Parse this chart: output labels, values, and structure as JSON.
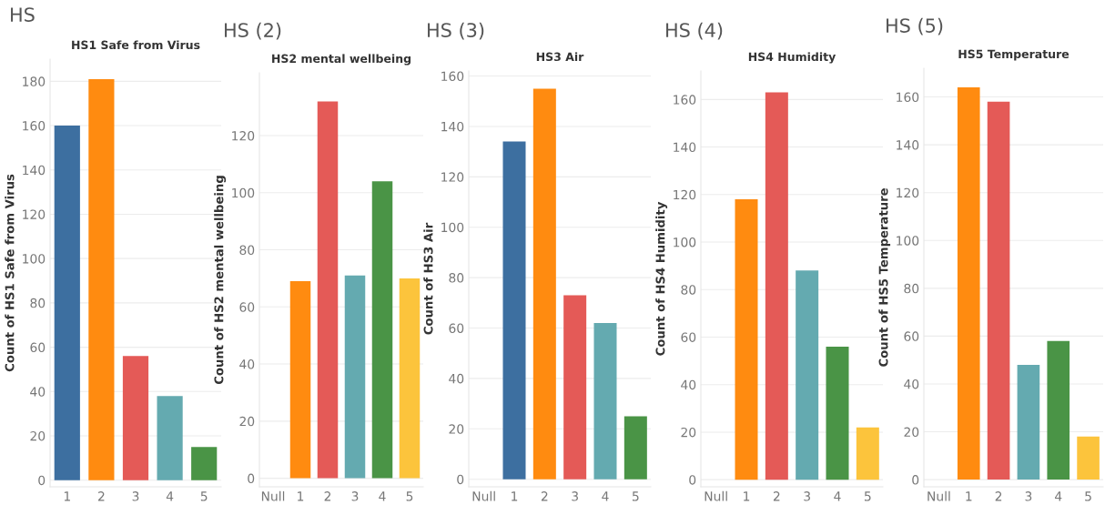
{
  "chart_data": [
    {
      "type": "bar",
      "title": "HS",
      "subtitle": "HS1 Safe from Virus",
      "ylabel": "Count of HS1 Safe from Virus",
      "categories": [
        "1",
        "2",
        "3",
        "4",
        "5"
      ],
      "values": [
        160,
        181,
        56,
        38,
        15
      ],
      "colors": [
        "#3d6fa0",
        "#ff8b10",
        "#e45a57",
        "#64aab0",
        "#4a9446"
      ],
      "ylim": [
        -3,
        190
      ],
      "yticks": [
        0,
        20,
        40,
        60,
        80,
        100,
        120,
        140,
        160,
        180
      ],
      "grid": "y"
    },
    {
      "type": "bar",
      "title": "HS (2)",
      "subtitle": "HS2 mental wellbeing",
      "ylabel": "Count of HS2 mental wellbeing",
      "categories": [
        "Null",
        "1",
        "2",
        "3",
        "4",
        "5"
      ],
      "values": [
        null,
        69,
        132,
        71,
        104,
        70
      ],
      "colors": [
        "#3d6fa0",
        "#ff8b10",
        "#e45a57",
        "#64aab0",
        "#4a9446",
        "#fcc43c"
      ],
      "ylim": [
        -3,
        142
      ],
      "yticks": [
        0,
        20,
        40,
        60,
        80,
        100,
        120
      ],
      "grid": "y"
    },
    {
      "type": "bar",
      "title": "HS (3)",
      "subtitle": "HS3 Air",
      "ylabel": "Count of HS3 Air",
      "categories": [
        "Null",
        "1",
        "2",
        "3",
        "4",
        "5"
      ],
      "values": [
        null,
        134,
        155,
        73,
        62,
        25
      ],
      "colors": [
        "#fcc43c",
        "#3d6fa0",
        "#ff8b10",
        "#e45a57",
        "#64aab0",
        "#4a9446"
      ],
      "ylim": [
        -3,
        162
      ],
      "yticks": [
        0,
        20,
        40,
        60,
        80,
        100,
        120,
        140,
        160
      ],
      "grid": "y"
    },
    {
      "type": "bar",
      "title": "HS (4)",
      "subtitle": "HS4 Humidity",
      "ylabel": "Count of HS4 Humidity",
      "categories": [
        "Null",
        "1",
        "2",
        "3",
        "4",
        "5"
      ],
      "values": [
        null,
        118,
        163,
        88,
        56,
        22
      ],
      "colors": [
        "#3d6fa0",
        "#ff8b10",
        "#e45a57",
        "#64aab0",
        "#4a9446",
        "#fcc43c"
      ],
      "ylim": [
        -3,
        172
      ],
      "yticks": [
        0,
        20,
        40,
        60,
        80,
        100,
        120,
        140,
        160
      ],
      "grid": "y"
    },
    {
      "type": "bar",
      "title": "HS (5)",
      "subtitle": "HS5 Temperature",
      "ylabel": "Count of HS5 Temperature",
      "categories": [
        "Null",
        "1",
        "2",
        "3",
        "4",
        "5"
      ],
      "values": [
        null,
        164,
        158,
        48,
        58,
        18
      ],
      "colors": [
        "#3d6fa0",
        "#ff8b10",
        "#e45a57",
        "#64aab0",
        "#4a9446",
        "#fcc43c"
      ],
      "ylim": [
        -3,
        172
      ],
      "yticks": [
        0,
        20,
        40,
        60,
        80,
        100,
        120,
        140,
        160
      ],
      "grid": "y"
    }
  ]
}
